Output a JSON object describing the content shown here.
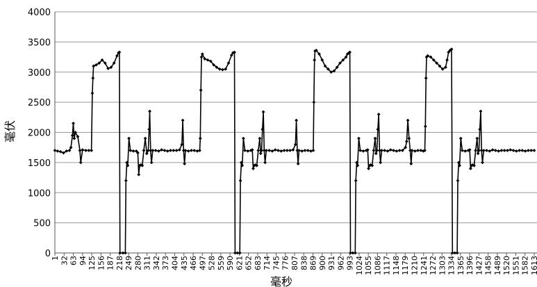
{
  "chart_data": {
    "type": "line",
    "xlabel": "毫秒",
    "ylabel": "毫伏",
    "ylim": [
      0,
      4000
    ],
    "yticks": [
      0,
      500,
      1000,
      1500,
      2000,
      2500,
      3000,
      3500,
      4000
    ],
    "grid": "horizontal",
    "legend": "none",
    "x_tick_labels": [
      "1",
      "32",
      "63",
      "94",
      "125",
      "156",
      "187",
      "218",
      "249",
      "280",
      "311",
      "342",
      "373",
      "404",
      "435",
      "466",
      "497",
      "528",
      "559",
      "590",
      "621",
      "652",
      "683",
      "714",
      "745",
      "776",
      "807",
      "838",
      "869",
      "900",
      "931",
      "962",
      "993",
      "1024",
      "1055",
      "1086",
      "1117",
      "1148",
      "1179",
      "1210",
      "1241",
      "1272",
      "1303",
      "1334",
      "1365",
      "1396",
      "1427",
      "1458",
      "1489",
      "1520",
      "1551",
      "1582",
      "1613"
    ],
    "x_range": [
      1,
      1613
    ],
    "series": [
      {
        "line_color": "#000000",
        "marker": "diamond",
        "points": [
          [
            1,
            1700
          ],
          [
            10,
            1690
          ],
          [
            20,
            1680
          ],
          [
            30,
            1660
          ],
          [
            40,
            1690
          ],
          [
            50,
            1700
          ],
          [
            55,
            1750
          ],
          [
            60,
            1950
          ],
          [
            63,
            2150
          ],
          [
            66,
            1900
          ],
          [
            70,
            2000
          ],
          [
            78,
            1930
          ],
          [
            85,
            1700
          ],
          [
            88,
            1500
          ],
          [
            94,
            1710
          ],
          [
            105,
            1700
          ],
          [
            115,
            1700
          ],
          [
            124,
            1700
          ],
          [
            127,
            2650
          ],
          [
            129,
            2900
          ],
          [
            131,
            3100
          ],
          [
            140,
            3120
          ],
          [
            150,
            3150
          ],
          [
            160,
            3200
          ],
          [
            170,
            3150
          ],
          [
            180,
            3060
          ],
          [
            190,
            3080
          ],
          [
            200,
            3150
          ],
          [
            210,
            3270
          ],
          [
            215,
            3320
          ],
          [
            218,
            3330
          ],
          [
            220,
            0
          ],
          [
            230,
            0
          ],
          [
            238,
            0
          ],
          [
            240,
            1200
          ],
          [
            243,
            1500
          ],
          [
            246,
            1450
          ],
          [
            250,
            1900
          ],
          [
            255,
            1700
          ],
          [
            265,
            1690
          ],
          [
            275,
            1690
          ],
          [
            280,
            1660
          ],
          [
            283,
            1300
          ],
          [
            286,
            1450
          ],
          [
            290,
            1460
          ],
          [
            295,
            1450
          ],
          [
            300,
            1700
          ],
          [
            305,
            1900
          ],
          [
            310,
            1650
          ],
          [
            315,
            1700
          ],
          [
            318,
            2050
          ],
          [
            320,
            2350
          ],
          [
            323,
            1700
          ],
          [
            326,
            1500
          ],
          [
            330,
            1700
          ],
          [
            340,
            1700
          ],
          [
            350,
            1690
          ],
          [
            360,
            1710
          ],
          [
            370,
            1700
          ],
          [
            380,
            1690
          ],
          [
            390,
            1700
          ],
          [
            400,
            1700
          ],
          [
            410,
            1700
          ],
          [
            420,
            1710
          ],
          [
            428,
            1800
          ],
          [
            431,
            2200
          ],
          [
            434,
            1700
          ],
          [
            437,
            1480
          ],
          [
            440,
            1700
          ],
          [
            450,
            1690
          ],
          [
            460,
            1700
          ],
          [
            470,
            1700
          ],
          [
            480,
            1690
          ],
          [
            488,
            1700
          ],
          [
            490,
            1900
          ],
          [
            492,
            2700
          ],
          [
            494,
            3250
          ],
          [
            497,
            3300
          ],
          [
            505,
            3220
          ],
          [
            515,
            3200
          ],
          [
            525,
            3180
          ],
          [
            535,
            3120
          ],
          [
            545,
            3080
          ],
          [
            555,
            3050
          ],
          [
            565,
            3040
          ],
          [
            575,
            3050
          ],
          [
            585,
            3150
          ],
          [
            595,
            3280
          ],
          [
            600,
            3320
          ],
          [
            605,
            3330
          ],
          [
            607,
            0
          ],
          [
            615,
            0
          ],
          [
            623,
            0
          ],
          [
            625,
            1200
          ],
          [
            628,
            1500
          ],
          [
            631,
            1450
          ],
          [
            635,
            1900
          ],
          [
            640,
            1700
          ],
          [
            650,
            1690
          ],
          [
            660,
            1700
          ],
          [
            665,
            1710
          ],
          [
            668,
            1400
          ],
          [
            671,
            1450
          ],
          [
            675,
            1460
          ],
          [
            680,
            1450
          ],
          [
            685,
            1700
          ],
          [
            690,
            1900
          ],
          [
            693,
            1650
          ],
          [
            696,
            1700
          ],
          [
            699,
            2050
          ],
          [
            702,
            2340
          ],
          [
            705,
            1700
          ],
          [
            708,
            1500
          ],
          [
            712,
            1700
          ],
          [
            722,
            1700
          ],
          [
            732,
            1690
          ],
          [
            742,
            1710
          ],
          [
            752,
            1700
          ],
          [
            762,
            1690
          ],
          [
            772,
            1700
          ],
          [
            782,
            1700
          ],
          [
            792,
            1700
          ],
          [
            802,
            1710
          ],
          [
            810,
            1800
          ],
          [
            813,
            2200
          ],
          [
            816,
            1700
          ],
          [
            819,
            1480
          ],
          [
            822,
            1700
          ],
          [
            832,
            1690
          ],
          [
            842,
            1700
          ],
          [
            852,
            1700
          ],
          [
            862,
            1690
          ],
          [
            870,
            1700
          ],
          [
            872,
            2500
          ],
          [
            874,
            3200
          ],
          [
            876,
            3350
          ],
          [
            880,
            3360
          ],
          [
            890,
            3300
          ],
          [
            900,
            3200
          ],
          [
            910,
            3100
          ],
          [
            920,
            3050
          ],
          [
            930,
            3000
          ],
          [
            940,
            3020
          ],
          [
            950,
            3080
          ],
          [
            960,
            3150
          ],
          [
            970,
            3200
          ],
          [
            980,
            3250
          ],
          [
            985,
            3300
          ],
          [
            990,
            3320
          ],
          [
            993,
            3330
          ],
          [
            995,
            0
          ],
          [
            1003,
            0
          ],
          [
            1011,
            0
          ],
          [
            1013,
            1200
          ],
          [
            1016,
            1500
          ],
          [
            1019,
            1450
          ],
          [
            1023,
            1900
          ],
          [
            1028,
            1700
          ],
          [
            1038,
            1690
          ],
          [
            1048,
            1700
          ],
          [
            1053,
            1710
          ],
          [
            1056,
            1400
          ],
          [
            1059,
            1450
          ],
          [
            1063,
            1460
          ],
          [
            1068,
            1450
          ],
          [
            1073,
            1700
          ],
          [
            1078,
            1900
          ],
          [
            1081,
            1650
          ],
          [
            1084,
            1700
          ],
          [
            1087,
            2050
          ],
          [
            1090,
            2300
          ],
          [
            1093,
            1700
          ],
          [
            1096,
            1500
          ],
          [
            1100,
            1700
          ],
          [
            1110,
            1700
          ],
          [
            1120,
            1690
          ],
          [
            1130,
            1710
          ],
          [
            1140,
            1700
          ],
          [
            1150,
            1690
          ],
          [
            1160,
            1700
          ],
          [
            1170,
            1700
          ],
          [
            1180,
            1750
          ],
          [
            1184,
            1850
          ],
          [
            1188,
            2200
          ],
          [
            1192,
            1900
          ],
          [
            1196,
            1700
          ],
          [
            1199,
            1480
          ],
          [
            1202,
            1700
          ],
          [
            1212,
            1690
          ],
          [
            1222,
            1700
          ],
          [
            1232,
            1700
          ],
          [
            1240,
            1690
          ],
          [
            1245,
            1700
          ],
          [
            1247,
            2100
          ],
          [
            1249,
            2900
          ],
          [
            1251,
            3250
          ],
          [
            1255,
            3270
          ],
          [
            1265,
            3250
          ],
          [
            1275,
            3200
          ],
          [
            1285,
            3150
          ],
          [
            1295,
            3100
          ],
          [
            1305,
            3050
          ],
          [
            1315,
            3080
          ],
          [
            1320,
            3200
          ],
          [
            1325,
            3330
          ],
          [
            1330,
            3360
          ],
          [
            1335,
            3380
          ],
          [
            1338,
            0
          ],
          [
            1346,
            0
          ],
          [
            1354,
            0
          ],
          [
            1356,
            1200
          ],
          [
            1359,
            1500
          ],
          [
            1362,
            1450
          ],
          [
            1366,
            1900
          ],
          [
            1371,
            1700
          ],
          [
            1381,
            1690
          ],
          [
            1391,
            1700
          ],
          [
            1396,
            1710
          ],
          [
            1399,
            1400
          ],
          [
            1402,
            1450
          ],
          [
            1406,
            1460
          ],
          [
            1411,
            1450
          ],
          [
            1416,
            1700
          ],
          [
            1421,
            1900
          ],
          [
            1424,
            1650
          ],
          [
            1427,
            1700
          ],
          [
            1430,
            2050
          ],
          [
            1433,
            2350
          ],
          [
            1436,
            1700
          ],
          [
            1439,
            1500
          ],
          [
            1443,
            1700
          ],
          [
            1453,
            1700
          ],
          [
            1463,
            1690
          ],
          [
            1473,
            1710
          ],
          [
            1483,
            1700
          ],
          [
            1493,
            1690
          ],
          [
            1503,
            1700
          ],
          [
            1513,
            1700
          ],
          [
            1523,
            1700
          ],
          [
            1533,
            1710
          ],
          [
            1543,
            1700
          ],
          [
            1553,
            1690
          ],
          [
            1563,
            1700
          ],
          [
            1573,
            1700
          ],
          [
            1583,
            1690
          ],
          [
            1593,
            1700
          ],
          [
            1603,
            1700
          ],
          [
            1613,
            1700
          ]
        ]
      }
    ]
  }
}
